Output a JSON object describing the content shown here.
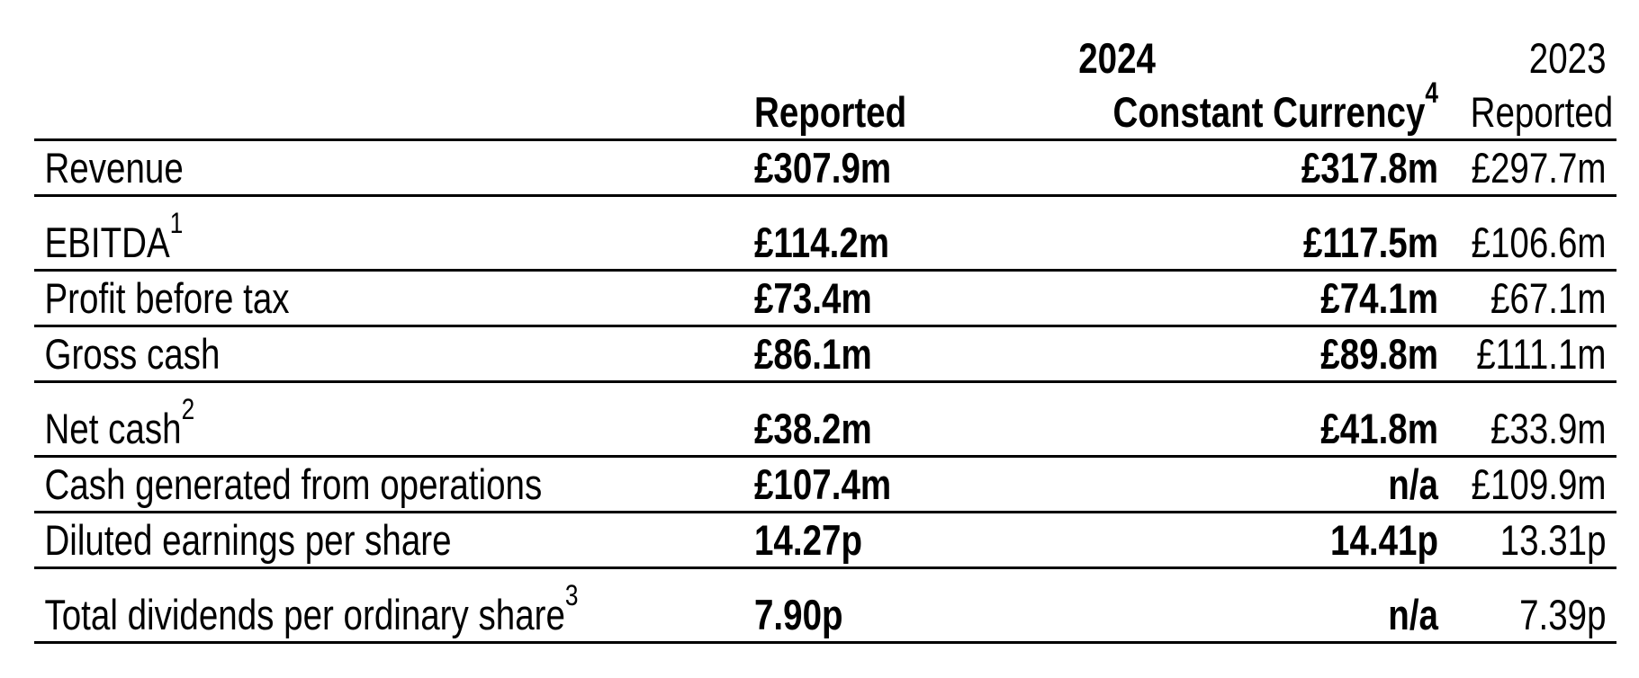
{
  "header": {
    "year_current": "2024",
    "year_previous": "2023",
    "col_reported": "Reported",
    "col_constant_currency": "Constant Currency",
    "col_constant_currency_note": "4",
    "col_prev_reported": "Reported"
  },
  "rows": [
    {
      "label": "Revenue",
      "note": "",
      "reported": "£307.9m",
      "constant": "£317.8m",
      "prev": "£297.7m"
    },
    {
      "label": "EBITDA",
      "note": "1",
      "reported": "£114.2m",
      "constant": "£117.5m",
      "prev": "£106.6m"
    },
    {
      "label": "Profit before tax",
      "note": "",
      "reported": "£73.4m",
      "constant": "£74.1m",
      "prev": "£67.1m"
    },
    {
      "label": "Gross cash",
      "note": "",
      "reported": "£86.1m",
      "constant": "£89.8m",
      "prev": "£111.1m"
    },
    {
      "label": "Net cash",
      "note": "2",
      "reported": "£38.2m",
      "constant": "£41.8m",
      "prev": "£33.9m"
    },
    {
      "label": "Cash generated from operations",
      "note": "",
      "reported": "£107.4m",
      "constant": "n/a",
      "prev": "£109.9m"
    },
    {
      "label": "Diluted earnings per share",
      "note": "",
      "reported": "14.27p",
      "constant": "14.41p",
      "prev": "13.31p"
    },
    {
      "label": "Total dividends per ordinary share",
      "note": "3",
      "reported": "7.90p",
      "constant": "n/a",
      "prev": "7.39p"
    }
  ]
}
